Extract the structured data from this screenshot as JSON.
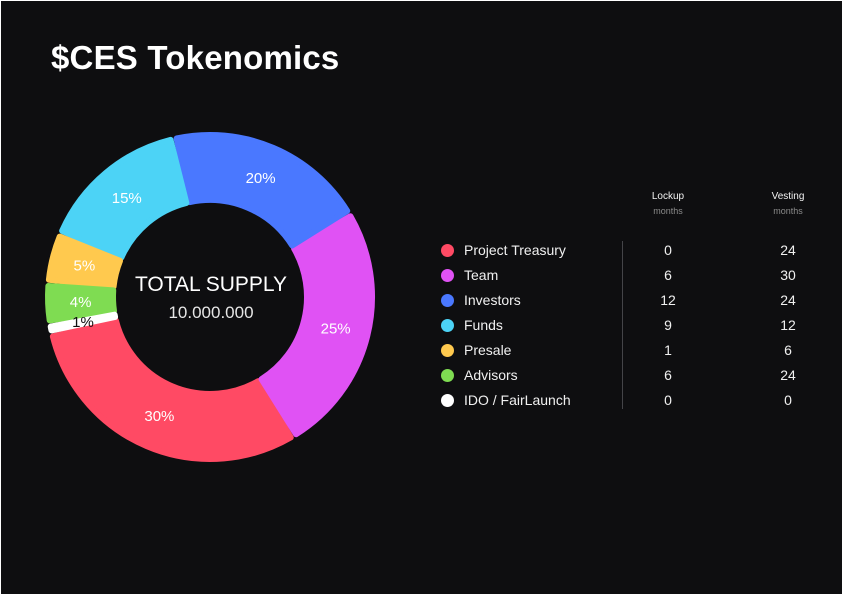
{
  "title": "$CES Tokenomics",
  "center": {
    "title": "TOTAL SUPPLY",
    "value": "10.000.000"
  },
  "columns": {
    "lockup": {
      "label": "Lockup",
      "unit": "months"
    },
    "vesting": {
      "label": "Vesting",
      "unit": "months"
    }
  },
  "chart_data": {
    "type": "pie",
    "title": "$CES Tokenomics",
    "unit": "%",
    "slices": [
      {
        "name": "Project Treasury",
        "value": 30,
        "label": "30%",
        "color": "#ff4a64",
        "lockup": "0",
        "vesting": "24"
      },
      {
        "name": "Team",
        "value": 25,
        "label": "25%",
        "color": "#e052f4",
        "lockup": "6",
        "vesting": "30"
      },
      {
        "name": "Investors",
        "value": 20,
        "label": "20%",
        "color": "#4a78ff",
        "lockup": "12",
        "vesting": "24"
      },
      {
        "name": "Funds",
        "value": 15,
        "label": "15%",
        "color": "#4cd3f6",
        "lockup": "9",
        "vesting": "12"
      },
      {
        "name": "Presale",
        "value": 5,
        "label": "5%",
        "color": "#ffc94e",
        "lockup": "1",
        "vesting": "6"
      },
      {
        "name": "Advisors",
        "value": 4,
        "label": "4%",
        "color": "#7fdc52",
        "lockup": "6",
        "vesting": "24"
      },
      {
        "name": "IDO / FairLaunch",
        "value": 1,
        "label": "1%",
        "color": "#ffffff",
        "lockup": "0",
        "vesting": "0"
      }
    ]
  }
}
